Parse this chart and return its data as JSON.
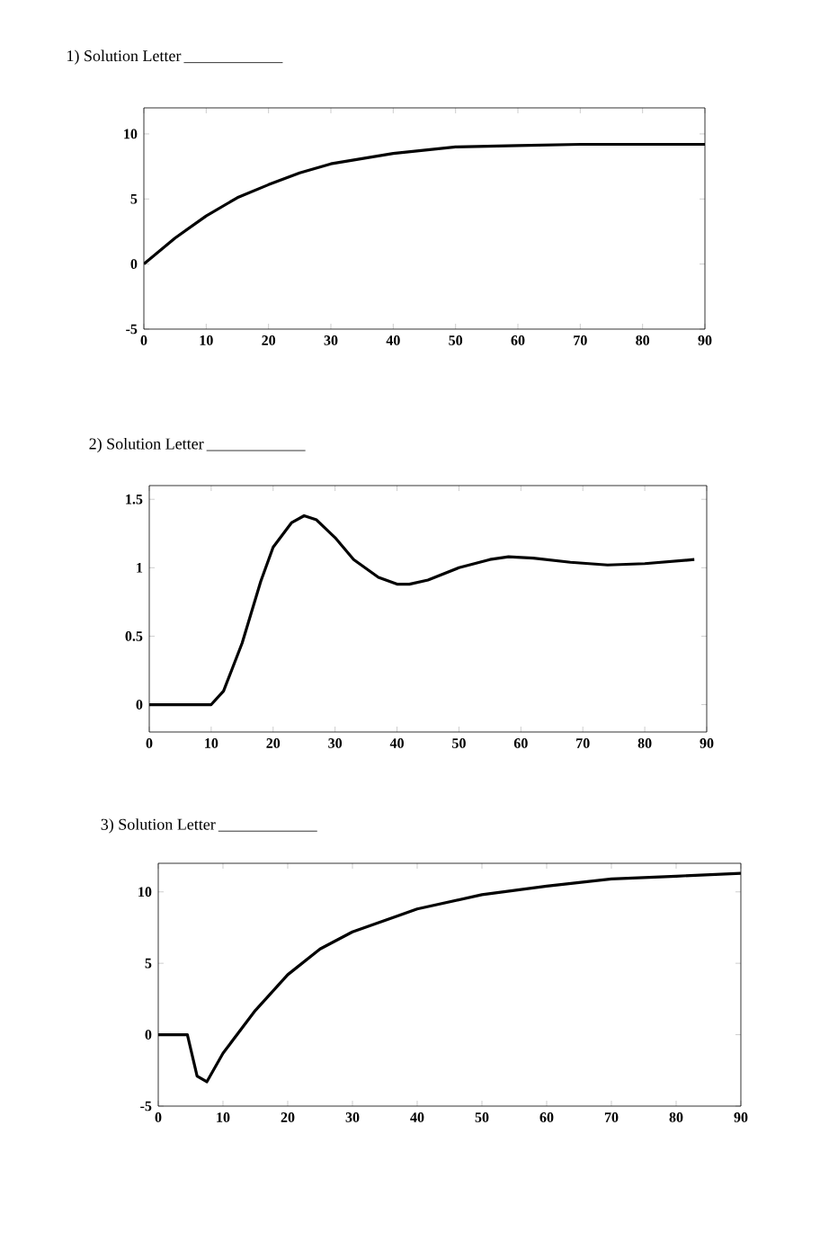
{
  "chart_data": [
    {
      "type": "line",
      "title": "1) Solution Letter",
      "x": [
        0,
        5,
        10,
        15,
        20,
        25,
        30,
        40,
        50,
        60,
        70,
        80,
        90
      ],
      "values": [
        0,
        2.0,
        3.7,
        5.1,
        6.1,
        7.0,
        7.7,
        8.5,
        9.0,
        9.1,
        9.2,
        9.2,
        9.2
      ],
      "color": "#000000",
      "xlim": [
        0,
        90
      ],
      "ylim": [
        -5,
        12
      ],
      "xticks": [
        0,
        10,
        20,
        30,
        40,
        50,
        60,
        70,
        80,
        90
      ],
      "yticks": [
        -5,
        0,
        5,
        10
      ],
      "marker": "none",
      "line_style": "solid",
      "grid": false
    },
    {
      "type": "line",
      "title": "2) Solution Letter",
      "x": [
        0,
        10,
        12,
        15,
        18,
        20,
        23,
        25,
        27,
        30,
        33,
        37,
        40,
        42,
        45,
        50,
        55,
        58,
        62,
        68,
        74,
        80,
        88
      ],
      "values": [
        0,
        0,
        0.1,
        0.45,
        0.9,
        1.15,
        1.33,
        1.38,
        1.35,
        1.22,
        1.06,
        0.93,
        0.88,
        0.88,
        0.91,
        1.0,
        1.06,
        1.08,
        1.07,
        1.04,
        1.02,
        1.03,
        1.06
      ],
      "color": "#000000",
      "xlim": [
        0,
        90
      ],
      "ylim": [
        -0.2,
        1.6
      ],
      "xticks": [
        0,
        10,
        20,
        30,
        40,
        50,
        60,
        70,
        80,
        90
      ],
      "yticks": [
        0,
        0.5,
        1,
        1.5
      ],
      "marker": "none",
      "line_style": "solid",
      "grid": false
    },
    {
      "type": "line",
      "title": "3) Solution Letter",
      "x": [
        0,
        4.5,
        6,
        7.5,
        10,
        15,
        20,
        25,
        30,
        40,
        50,
        60,
        70,
        80,
        90
      ],
      "values": [
        0,
        0,
        -2.9,
        -3.3,
        -1.3,
        1.7,
        4.2,
        6.0,
        7.2,
        8.8,
        9.8,
        10.4,
        10.9,
        11.1,
        11.3
      ],
      "color": "#000000",
      "xlim": [
        0,
        90
      ],
      "ylim": [
        -5,
        12
      ],
      "xticks": [
        0,
        10,
        20,
        30,
        40,
        50,
        60,
        70,
        80,
        90
      ],
      "yticks": [
        -5,
        0,
        5,
        10
      ],
      "marker": "none",
      "line_style": "solid",
      "grid": false
    }
  ]
}
